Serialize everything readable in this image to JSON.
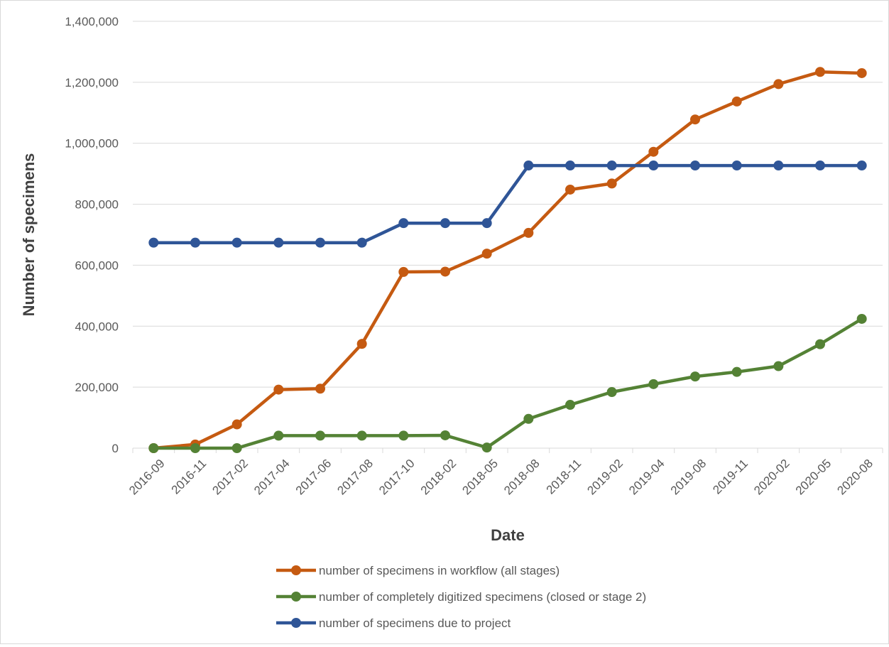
{
  "chart_data": {
    "type": "line",
    "title": "",
    "xlabel": "Date",
    "ylabel": "Number of specimens",
    "ylim": [
      0,
      1400000
    ],
    "yticks": [
      0,
      200000,
      400000,
      600000,
      800000,
      1000000,
      1200000,
      1400000
    ],
    "ytick_labels": [
      "0",
      "200,000",
      "400,000",
      "600,000",
      "800,000",
      "1,000,000",
      "1,200,000",
      "1,400,000"
    ],
    "grid": "horizontal",
    "legend_position": "bottom",
    "categories": [
      "2016-09",
      "2016-11",
      "2017-02",
      "2017-04",
      "2017-06",
      "2017-08",
      "2017-10",
      "2018-02",
      "2018-05",
      "2018-08",
      "2018-11",
      "2019-02",
      "2019-04",
      "2019-08",
      "2019-11",
      "2020-02",
      "2020-05",
      "2020-08"
    ],
    "series": [
      {
        "name": "number of specimens in workflow (all stages)",
        "color": "#c55a11",
        "values": [
          0,
          12000,
          78000,
          192000,
          195000,
          342000,
          578000,
          579000,
          638000,
          706000,
          848000,
          868000,
          972000,
          1078000,
          1137000,
          1194000,
          1234000,
          1230000
        ]
      },
      {
        "name": "number of completely digitized specimens (closed or stage 2)",
        "color": "#548235",
        "values": [
          0,
          0,
          0,
          41000,
          41000,
          41000,
          41000,
          42000,
          2000,
          96000,
          142000,
          184000,
          210000,
          235000,
          250000,
          269000,
          341000,
          424000
        ]
      },
      {
        "name": "number of specimens due to project",
        "color": "#2f5597",
        "values": [
          674000,
          674000,
          674000,
          674000,
          674000,
          674000,
          738000,
          738000,
          738000,
          927000,
          927000,
          927000,
          927000,
          927000,
          927000,
          927000,
          927000,
          927000
        ]
      }
    ]
  }
}
